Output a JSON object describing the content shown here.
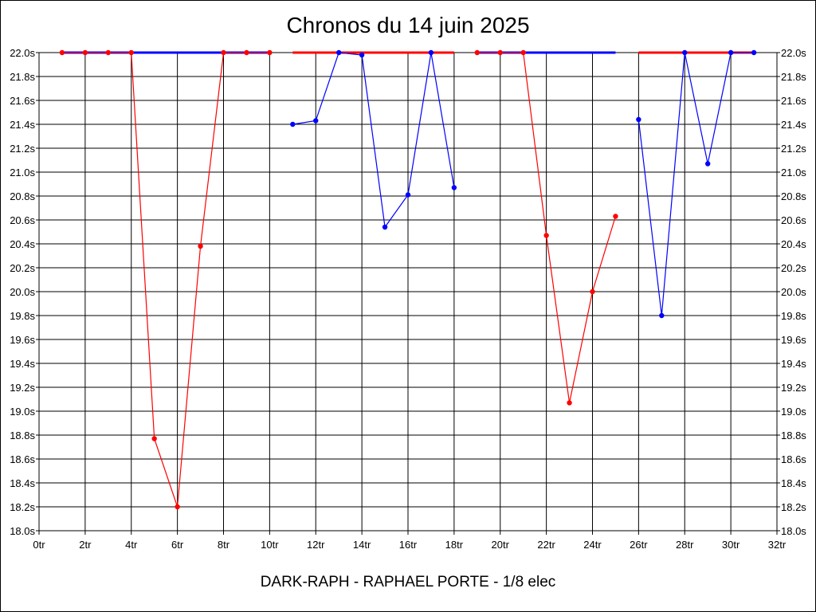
{
  "chart_data": {
    "type": "line",
    "title": "Chronos du 14 juin 2025",
    "footer": "DARK-RAPH - RAPHAEL PORTE - 1/8 elec",
    "xlim": [
      0,
      32
    ],
    "ylim": [
      18.0,
      22.0
    ],
    "grid": true,
    "x_ticks": [
      "0tr",
      "2tr",
      "4tr",
      "6tr",
      "8tr",
      "10tr",
      "12tr",
      "14tr",
      "16tr",
      "18tr",
      "20tr",
      "22tr",
      "24tr",
      "26tr",
      "28tr",
      "30tr",
      "32tr"
    ],
    "y_ticks": [
      "22.0s",
      "21.8s",
      "21.6s",
      "21.4s",
      "21.2s",
      "21.0s",
      "20.8s",
      "20.6s",
      "20.4s",
      "20.2s",
      "20.0s",
      "19.8s",
      "19.6s",
      "19.4s",
      "19.2s",
      "19.0s",
      "18.8s",
      "18.6s",
      "18.4s",
      "18.2s",
      "18.0s"
    ],
    "colors": {
      "red": "#ff0000",
      "blue": "#0000ff"
    },
    "series": [
      {
        "color": "red",
        "x": [
          1,
          2,
          3,
          4,
          5,
          6,
          7,
          8,
          9,
          10
        ],
        "y": [
          22.0,
          22.0,
          22.0,
          22.0,
          18.77,
          18.2,
          20.38,
          22.0,
          22.0,
          22.0
        ]
      },
      {
        "color": "blue",
        "x": [
          11,
          12,
          13,
          14,
          15,
          16,
          17,
          18
        ],
        "y": [
          21.4,
          21.43,
          22.0,
          21.98,
          20.54,
          20.81,
          22.0,
          20.87
        ]
      },
      {
        "color": "red",
        "x": [
          19,
          20,
          21,
          22,
          23,
          24,
          25
        ],
        "y": [
          22.0,
          22.0,
          22.0,
          20.47,
          19.07,
          20.0,
          20.63
        ]
      },
      {
        "color": "blue",
        "x": [
          26,
          27,
          28,
          29,
          30,
          31
        ],
        "y": [
          21.44,
          19.8,
          22.0,
          21.07,
          22.0,
          22.0
        ]
      }
    ],
    "top_bars": [
      {
        "color": "blue",
        "from": 1,
        "to": 10
      },
      {
        "color": "red",
        "from": 11,
        "to": 18
      },
      {
        "color": "blue",
        "from": 19,
        "to": 25
      },
      {
        "color": "red",
        "from": 26,
        "to": 31
      }
    ]
  }
}
